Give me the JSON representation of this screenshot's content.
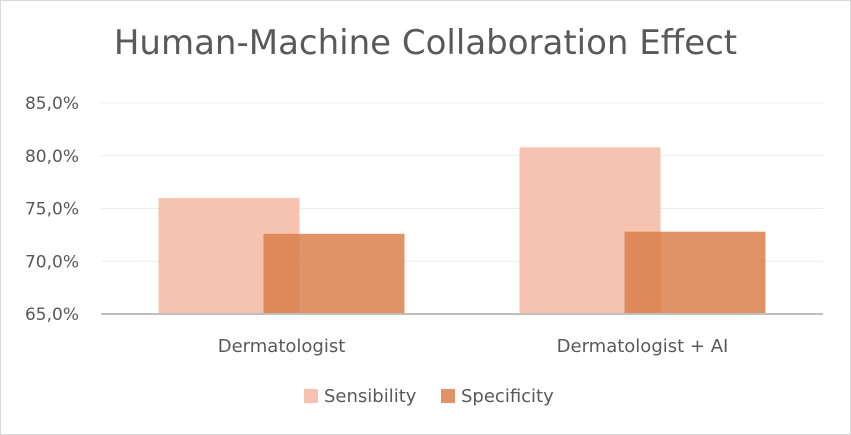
{
  "chart_data": {
    "type": "bar",
    "title": "Human-Machine Collaboration Effect",
    "categories": [
      "Dermatologist",
      "Dermatologist + AI"
    ],
    "series": [
      {
        "name": "Sensibility",
        "values": [
          76.0,
          80.8
        ],
        "color": "#f4b9a2"
      },
      {
        "name": "Specificity",
        "values": [
          72.6,
          72.8
        ],
        "color": "#d9804c"
      }
    ],
    "ylim": [
      65,
      85
    ],
    "yticks": [
      65,
      70,
      75,
      80,
      85
    ],
    "ytick_labels": [
      "65,0%",
      "70,0%",
      "75,0%",
      "80,0%",
      "85,0%"
    ],
    "grid": true,
    "legend_position": "bottom",
    "bar_opacity": 0.85
  }
}
